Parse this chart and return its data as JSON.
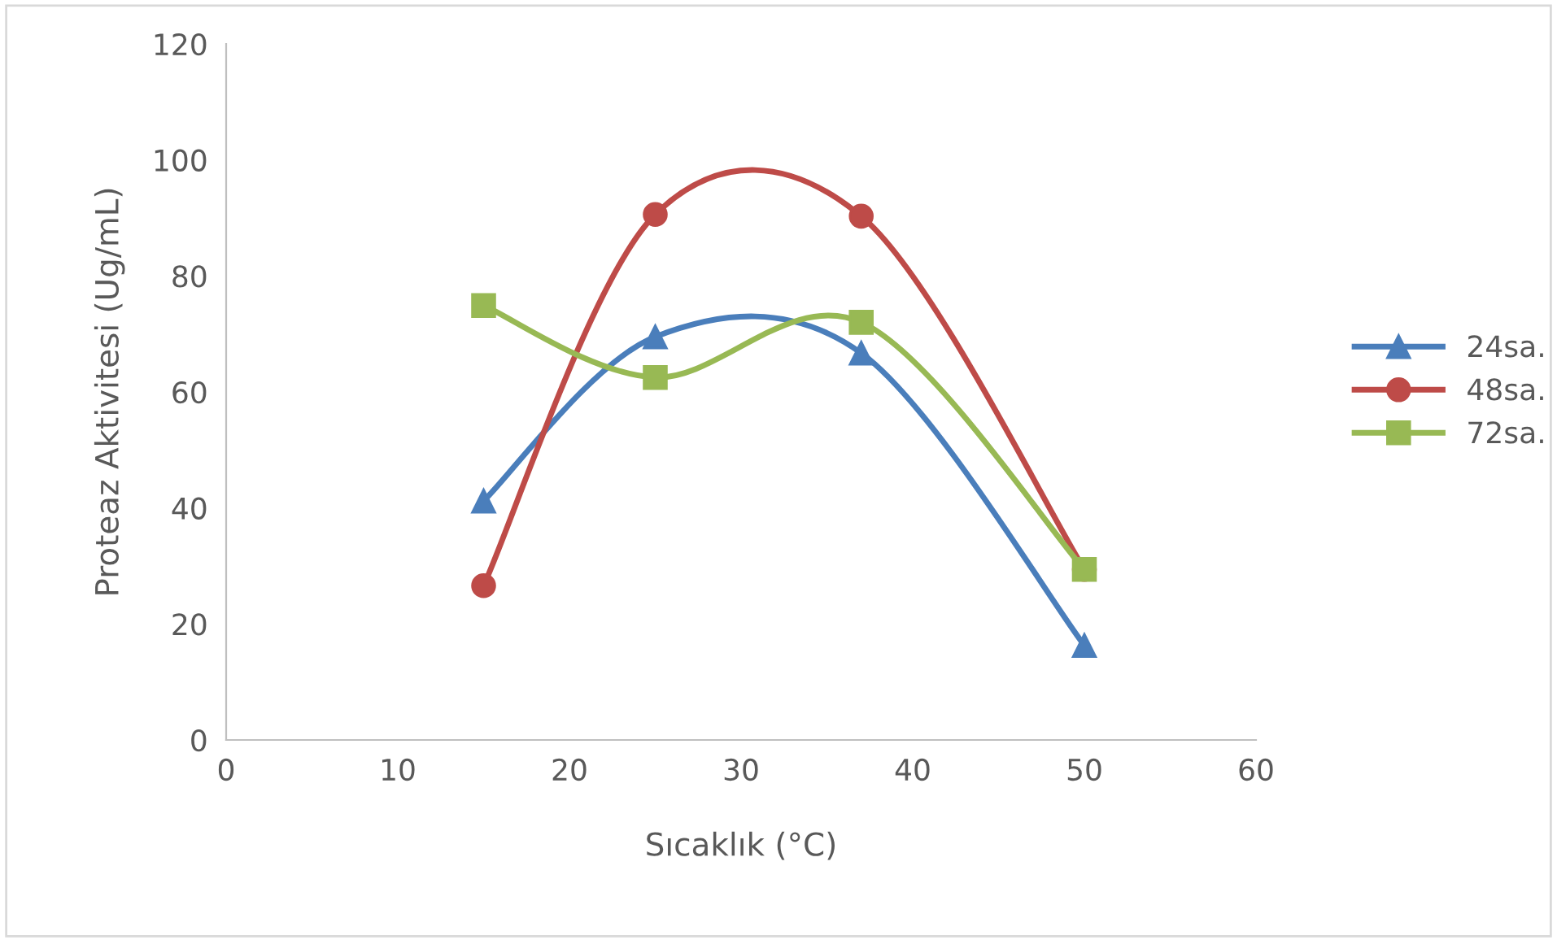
{
  "chart_data": {
    "type": "line",
    "xlabel": "Sıcaklık (°C)",
    "ylabel": "Proteaz Aktivitesi (Ug/mL)",
    "x": [
      15,
      25,
      37,
      50
    ],
    "series": [
      {
        "name": "24sa.",
        "color": "#4a7ebb",
        "values": [
          41.2,
          69.5,
          66.7,
          16.3
        ],
        "marker": "triangle"
      },
      {
        "name": "48sa.",
        "color": "#be4b48",
        "values": [
          26.6,
          90.6,
          90.3,
          29.4
        ],
        "marker": "circle"
      },
      {
        "name": "72sa.",
        "color": "#98b954",
        "values": [
          74.9,
          62.5,
          72.0,
          29.4
        ],
        "marker": "square"
      }
    ],
    "xlim": [
      0,
      60
    ],
    "xticks": [
      0,
      10,
      20,
      30,
      40,
      50,
      60
    ],
    "ylim": [
      0,
      120
    ],
    "yticks": [
      0,
      20,
      40,
      60,
      80,
      100,
      120
    ],
    "grid": false,
    "legend": "right",
    "line_style": "solid"
  }
}
